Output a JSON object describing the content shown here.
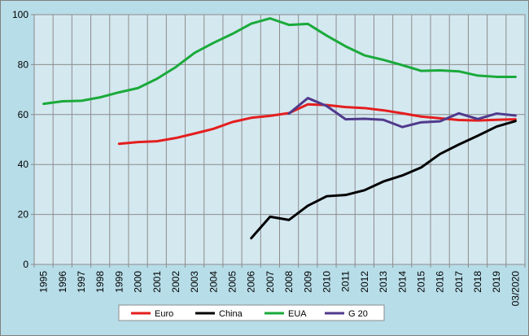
{
  "chart_data": {
    "type": "line",
    "title": "",
    "xlabel": "",
    "ylabel": "",
    "ylim": [
      0,
      100
    ],
    "yticks": [
      0,
      20,
      40,
      60,
      80,
      100
    ],
    "categories": [
      "1995",
      "1996",
      "1997",
      "1998",
      "1999",
      "2000",
      "2001",
      "2002",
      "2003",
      "2004",
      "2005",
      "2006",
      "2007",
      "2008",
      "2009",
      "2010",
      "2011",
      "2012",
      "2013",
      "2014",
      "2015",
      "2016",
      "2017",
      "2018",
      "2019",
      "03/2020"
    ],
    "grid": true,
    "legend_position": "bottom",
    "series": [
      {
        "name": "Euro",
        "color": "#e41e1e",
        "values": [
          null,
          null,
          null,
          null,
          48.3,
          49.0,
          49.3,
          50.6,
          52.4,
          54.3,
          57.0,
          58.7,
          59.5,
          60.6,
          64.1,
          63.8,
          63.0,
          62.6,
          61.7,
          60.5,
          59.2,
          58.5,
          57.8,
          57.6,
          57.9,
          58.1
        ]
      },
      {
        "name": "China",
        "color": "#000000",
        "values": [
          null,
          null,
          null,
          null,
          null,
          null,
          null,
          null,
          null,
          null,
          null,
          10.5,
          19.1,
          17.8,
          23.5,
          27.3,
          27.8,
          29.7,
          33.2,
          35.6,
          38.8,
          44.2,
          48.0,
          51.5,
          55.2,
          57.4
        ]
      },
      {
        "name": "EUA",
        "color": "#1aaa3a",
        "values": [
          64.3,
          65.3,
          65.5,
          66.9,
          68.9,
          70.6,
          74.3,
          79.0,
          84.7,
          88.7,
          92.3,
          96.4,
          98.5,
          95.9,
          96.3,
          91.6,
          87.3,
          83.7,
          81.9,
          79.8,
          77.5,
          77.7,
          77.3,
          75.6,
          75.1,
          75.1
        ]
      },
      {
        "name": "G 20",
        "color": "#503a8c",
        "values": [
          null,
          null,
          null,
          null,
          null,
          null,
          null,
          null,
          null,
          null,
          null,
          null,
          null,
          60.4,
          66.6,
          63.4,
          58.1,
          58.3,
          57.9,
          55.0,
          56.9,
          57.3,
          60.5,
          58.2,
          60.4,
          59.6
        ]
      }
    ]
  }
}
